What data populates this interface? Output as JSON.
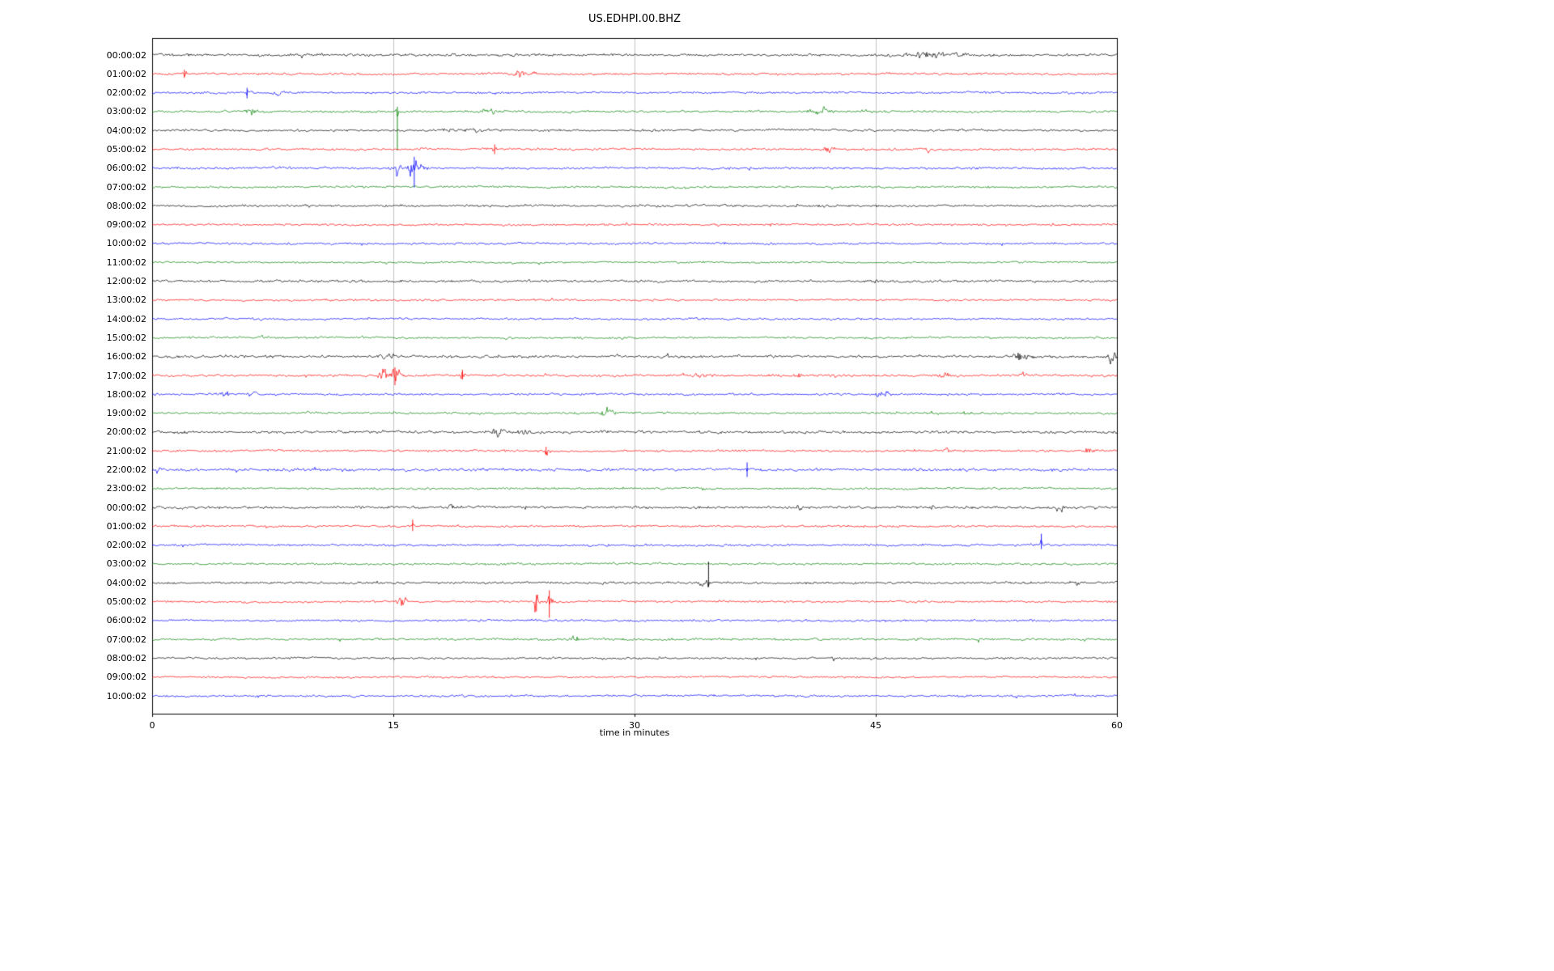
{
  "page": {
    "title": "US.EDHPI.00.BHZ"
  },
  "chart_data": {
    "type": "line",
    "subtype": "seismogram-dayplot",
    "title": "US.EDHPI.00.BHZ",
    "xlabel": "time in minutes",
    "xlim": [
      0,
      60
    ],
    "x_ticks": [
      0,
      15,
      30,
      45,
      60
    ],
    "x_tick_labels": [
      "0",
      "15",
      "30",
      "45",
      "60"
    ],
    "grid_x": [
      15,
      30,
      45
    ],
    "grid_color": "#b0b0b0",
    "legend": false,
    "frame_color": "#000000",
    "color_cycle": [
      "#000000",
      "#ff0000",
      "#0000ff",
      "#008000"
    ],
    "rows": [
      {
        "label": "00:00:02",
        "color": "#000000",
        "amp": 1.6,
        "events": [
          {
            "t": 48.3,
            "amp": 2.2,
            "dur": 1.4
          },
          {
            "t": 50.2,
            "amp": 1.6,
            "dur": 0.7
          }
        ]
      },
      {
        "label": "01:00:02",
        "color": "#ff0000",
        "amp": 1.3,
        "events": [
          {
            "t": 2.0,
            "amp": 3.0,
            "dur": 0.2,
            "spike_up": 5,
            "spike_down": 5
          },
          {
            "t": 22.8,
            "amp": 3.5,
            "dur": 0.4
          },
          {
            "t": 23.6,
            "amp": 2.5,
            "dur": 0.3
          }
        ]
      },
      {
        "label": "02:00:02",
        "color": "#0000ff",
        "amp": 1.3,
        "events": [
          {
            "t": 5.9,
            "amp": 4.0,
            "dur": 0.25,
            "spike_up": 6,
            "spike_down": 7
          },
          {
            "t": 7.8,
            "amp": 2.5,
            "dur": 0.4
          }
        ]
      },
      {
        "label": "03:00:02",
        "color": "#008000",
        "amp": 1.3,
        "events": [
          {
            "t": 6.2,
            "amp": 2.5,
            "dur": 0.5
          },
          {
            "t": 14.2,
            "amp": 1.8,
            "dur": 0.6
          },
          {
            "t": 15.25,
            "amp": 5.0,
            "dur": 0.15,
            "spike_up": 6,
            "spike_down": 48
          },
          {
            "t": 21.0,
            "amp": 3.0,
            "dur": 0.7
          },
          {
            "t": 41.5,
            "amp": 3.5,
            "dur": 0.9
          },
          {
            "t": 44.5,
            "amp": 1.6,
            "dur": 0.5
          }
        ]
      },
      {
        "label": "04:00:02",
        "color": "#000000",
        "amp": 1.3,
        "events": [
          {
            "t": 18.8,
            "amp": 2.2,
            "dur": 1.2
          },
          {
            "t": 20.1,
            "amp": 1.8,
            "dur": 0.5
          }
        ]
      },
      {
        "label": "05:00:02",
        "color": "#ff0000",
        "amp": 1.3,
        "events": [
          {
            "t": 21.3,
            "amp": 2.8,
            "dur": 0.25,
            "spike_up": 6,
            "spike_down": 6
          },
          {
            "t": 42.0,
            "amp": 2.0,
            "dur": 0.6
          },
          {
            "t": 48.2,
            "amp": 2.4,
            "dur": 0.3
          }
        ]
      },
      {
        "label": "06:00:02",
        "color": "#0000ff",
        "amp": 1.3,
        "events": [
          {
            "t": 15.2,
            "amp": 4.0,
            "dur": 0.4
          },
          {
            "t": 16.3,
            "amp": 9.0,
            "dur": 0.45,
            "spike_up": 14,
            "spike_down": 24
          },
          {
            "t": 16.9,
            "amp": 5.0,
            "dur": 0.3
          }
        ]
      },
      {
        "label": "07:00:02",
        "color": "#008000",
        "amp": 1.3,
        "events": []
      },
      {
        "label": "08:00:02",
        "color": "#000000",
        "amp": 1.4,
        "events": []
      },
      {
        "label": "09:00:02",
        "color": "#ff0000",
        "amp": 1.2,
        "events": []
      },
      {
        "label": "10:00:02",
        "color": "#0000ff",
        "amp": 1.3,
        "events": []
      },
      {
        "label": "11:00:02",
        "color": "#008000",
        "amp": 1.2,
        "events": []
      },
      {
        "label": "12:00:02",
        "color": "#000000",
        "amp": 1.5,
        "events": []
      },
      {
        "label": "13:00:02",
        "color": "#ff0000",
        "amp": 1.2,
        "events": []
      },
      {
        "label": "14:00:02",
        "color": "#0000ff",
        "amp": 1.2,
        "events": []
      },
      {
        "label": "15:00:02",
        "color": "#008000",
        "amp": 1.3,
        "events": [
          {
            "t": 7.0,
            "amp": 1.5,
            "dur": 0.4
          }
        ]
      },
      {
        "label": "16:00:02",
        "color": "#000000",
        "amp": 1.6,
        "events": [
          {
            "t": 14.6,
            "amp": 3.5,
            "dur": 0.5
          },
          {
            "t": 54.0,
            "amp": 3.0,
            "dur": 0.5
          },
          {
            "t": 54.8,
            "amp": 2.5,
            "dur": 0.3
          },
          {
            "t": 59.7,
            "amp": 4.0,
            "dur": 0.4
          }
        ]
      },
      {
        "label": "17:00:02",
        "color": "#ff0000",
        "amp": 1.4,
        "events": [
          {
            "t": 14.5,
            "amp": 6.0,
            "dur": 0.5
          },
          {
            "t": 15.1,
            "amp": 8.0,
            "dur": 0.5,
            "spike_up": 10,
            "spike_down": 12
          },
          {
            "t": 19.3,
            "amp": 4.0,
            "dur": 0.2,
            "spike_up": 7,
            "spike_down": 5
          },
          {
            "t": 34.2,
            "amp": 3.0,
            "dur": 0.6
          },
          {
            "t": 40.2,
            "amp": 2.2,
            "dur": 0.4
          },
          {
            "t": 42.5,
            "amp": 2.0,
            "dur": 0.3
          },
          {
            "t": 49.3,
            "amp": 2.5,
            "dur": 0.4
          },
          {
            "t": 54.2,
            "amp": 2.0,
            "dur": 0.3
          }
        ]
      },
      {
        "label": "18:00:02",
        "color": "#0000ff",
        "amp": 1.3,
        "events": [
          {
            "t": 4.5,
            "amp": 2.5,
            "dur": 0.5
          },
          {
            "t": 6.3,
            "amp": 2.5,
            "dur": 0.4
          },
          {
            "t": 45.5,
            "amp": 2.5,
            "dur": 0.5
          }
        ]
      },
      {
        "label": "19:00:02",
        "color": "#008000",
        "amp": 1.3,
        "events": [
          {
            "t": 28.3,
            "amp": 4.0,
            "dur": 0.5
          },
          {
            "t": 50.6,
            "amp": 3.0,
            "dur": 0.25
          }
        ]
      },
      {
        "label": "20:00:02",
        "color": "#000000",
        "amp": 1.6,
        "events": [
          {
            "t": 21.5,
            "amp": 2.5,
            "dur": 0.6
          },
          {
            "t": 23.0,
            "amp": 1.8,
            "dur": 0.4
          }
        ]
      },
      {
        "label": "21:00:02",
        "color": "#ff0000",
        "amp": 1.3,
        "events": [
          {
            "t": 24.5,
            "amp": 3.0,
            "dur": 0.25,
            "spike_up": 5,
            "spike_down": 5
          },
          {
            "t": 49.5,
            "amp": 2.2,
            "dur": 0.3
          },
          {
            "t": 58.3,
            "amp": 2.5,
            "dur": 0.5
          }
        ]
      },
      {
        "label": "22:00:02",
        "color": "#0000ff",
        "amp": 1.7,
        "events": [
          {
            "t": 0.4,
            "amp": 2.5,
            "dur": 0.3
          },
          {
            "t": 10.0,
            "amp": 1.6,
            "dur": 0.5
          },
          {
            "t": 37.0,
            "amp": 2.0,
            "dur": 0.12,
            "spike_up": 9,
            "spike_down": 9
          }
        ]
      },
      {
        "label": "23:00:02",
        "color": "#008000",
        "amp": 1.3,
        "events": []
      },
      {
        "label": "00:00:02",
        "color": "#000000",
        "amp": 1.5,
        "events": [
          {
            "t": 18.5,
            "amp": 1.8,
            "dur": 0.3
          },
          {
            "t": 23.2,
            "amp": 2.0,
            "dur": 0.2
          },
          {
            "t": 40.3,
            "amp": 2.0,
            "dur": 0.25
          },
          {
            "t": 48.5,
            "amp": 2.0,
            "dur": 0.25
          },
          {
            "t": 56.5,
            "amp": 2.2,
            "dur": 0.5
          }
        ]
      },
      {
        "label": "01:00:02",
        "color": "#ff0000",
        "amp": 1.3,
        "events": [
          {
            "t": 16.2,
            "amp": 3.0,
            "dur": 0.15,
            "spike_up": 8,
            "spike_down": 6
          }
        ]
      },
      {
        "label": "02:00:02",
        "color": "#0000ff",
        "amp": 1.3,
        "events": [
          {
            "t": 55.3,
            "amp": 3.0,
            "dur": 0.15,
            "spike_up": 14,
            "spike_down": 5
          }
        ]
      },
      {
        "label": "03:00:02",
        "color": "#008000",
        "amp": 1.3,
        "events": []
      },
      {
        "label": "04:00:02",
        "color": "#000000",
        "amp": 1.4,
        "events": [
          {
            "t": 34.3,
            "amp": 2.5,
            "dur": 0.5
          },
          {
            "t": 34.6,
            "amp": 2.0,
            "dur": 0.08,
            "spike_up": 26,
            "spike_down": 5
          },
          {
            "t": 57.3,
            "amp": 2.5,
            "dur": 0.5
          }
        ]
      },
      {
        "label": "05:00:02",
        "color": "#ff0000",
        "amp": 1.3,
        "events": [
          {
            "t": 15.6,
            "amp": 5.0,
            "dur": 0.4
          },
          {
            "t": 23.9,
            "amp": 7.0,
            "dur": 0.3,
            "spike_up": 8,
            "spike_down": 12
          },
          {
            "t": 24.7,
            "amp": 8.0,
            "dur": 0.25,
            "spike_up": 14,
            "spike_down": 20
          }
        ]
      },
      {
        "label": "06:00:02",
        "color": "#0000ff",
        "amp": 1.3,
        "events": []
      },
      {
        "label": "07:00:02",
        "color": "#008000",
        "amp": 1.4,
        "events": [
          {
            "t": 26.3,
            "amp": 2.0,
            "dur": 0.4
          }
        ]
      },
      {
        "label": "08:00:02",
        "color": "#000000",
        "amp": 1.3,
        "events": []
      },
      {
        "label": "09:00:02",
        "color": "#ff0000",
        "amp": 1.2,
        "events": []
      },
      {
        "label": "10:00:02",
        "color": "#0000ff",
        "amp": 1.3,
        "events": []
      }
    ]
  }
}
